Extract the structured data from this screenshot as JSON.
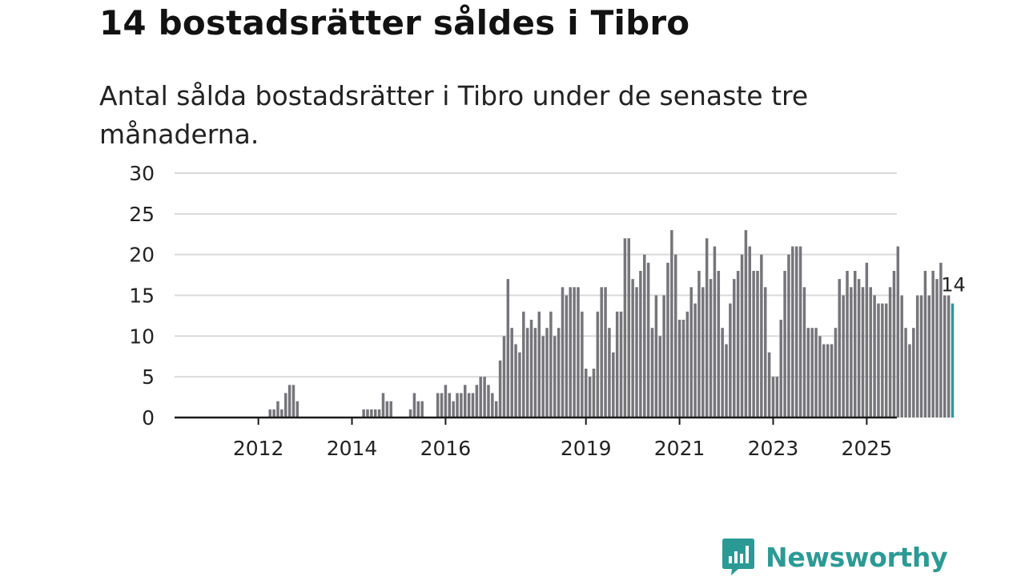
{
  "title": "14 bostadsrätter såldes i Tibro",
  "subtitle": "Antal sålda bostadsrätter i Tibro under de senaste tre månaderna.",
  "brand": {
    "name": "Newsworthy",
    "color": "#2c9a94",
    "icon": "bar-chart-speech-bubble-icon"
  },
  "chart_data": {
    "type": "bar",
    "title": "14 bostadsrätter såldes i Tibro",
    "xlabel": "",
    "ylabel": "",
    "ylim": [
      0,
      30
    ],
    "yticks": [
      0,
      5,
      10,
      15,
      20,
      25,
      30
    ],
    "grid": true,
    "x_start": "2011-01",
    "x_tick_labels": [
      {
        "label": "2012",
        "month_index": 12
      },
      {
        "label": "2014",
        "month_index": 36
      },
      {
        "label": "2016",
        "month_index": 60
      },
      {
        "label": "2019",
        "month_index": 96
      },
      {
        "label": "2021",
        "month_index": 120
      },
      {
        "label": "2023",
        "month_index": 144
      },
      {
        "label": "2025",
        "month_index": 168
      }
    ],
    "values": [
      0,
      0,
      0,
      0,
      0,
      0,
      0,
      0,
      0,
      0,
      0,
      0,
      0,
      0,
      0,
      1,
      1,
      2,
      1,
      3,
      4,
      4,
      2,
      0,
      0,
      0,
      0,
      0,
      0,
      0,
      0,
      0,
      0,
      0,
      0,
      0,
      0,
      0,
      0,
      1,
      1,
      1,
      1,
      1,
      3,
      2,
      2,
      0,
      0,
      0,
      0,
      1,
      3,
      2,
      2,
      0,
      0,
      0,
      3,
      3,
      4,
      3,
      2,
      3,
      3,
      4,
      3,
      3,
      4,
      5,
      5,
      4,
      3,
      2,
      7,
      10,
      17,
      11,
      9,
      8,
      13,
      11,
      12,
      11,
      13,
      10,
      11,
      13,
      10,
      11,
      16,
      15,
      16,
      16,
      16,
      13,
      6,
      5,
      6,
      13,
      16,
      16,
      11,
      8,
      13,
      13,
      22,
      22,
      17,
      16,
      18,
      20,
      19,
      11,
      15,
      10,
      15,
      19,
      23,
      20,
      12,
      12,
      13,
      16,
      14,
      18,
      16,
      22,
      17,
      21,
      18,
      11,
      9,
      14,
      17,
      18,
      20,
      23,
      21,
      18,
      18,
      20,
      16,
      8,
      5,
      5,
      12,
      18,
      20,
      21,
      21,
      21,
      16,
      11,
      11,
      11,
      10,
      9,
      9,
      9,
      11,
      17,
      15,
      18,
      16,
      18,
      17,
      16,
      19,
      16,
      15,
      14,
      14,
      14,
      16,
      18,
      21,
      15,
      11,
      9,
      11,
      15,
      15,
      18,
      15,
      18,
      17,
      19,
      15,
      15,
      14
    ],
    "bar_color": "#76757a",
    "highlight_color": "#2c9a94",
    "highlight_last": true,
    "end_label": "14"
  }
}
